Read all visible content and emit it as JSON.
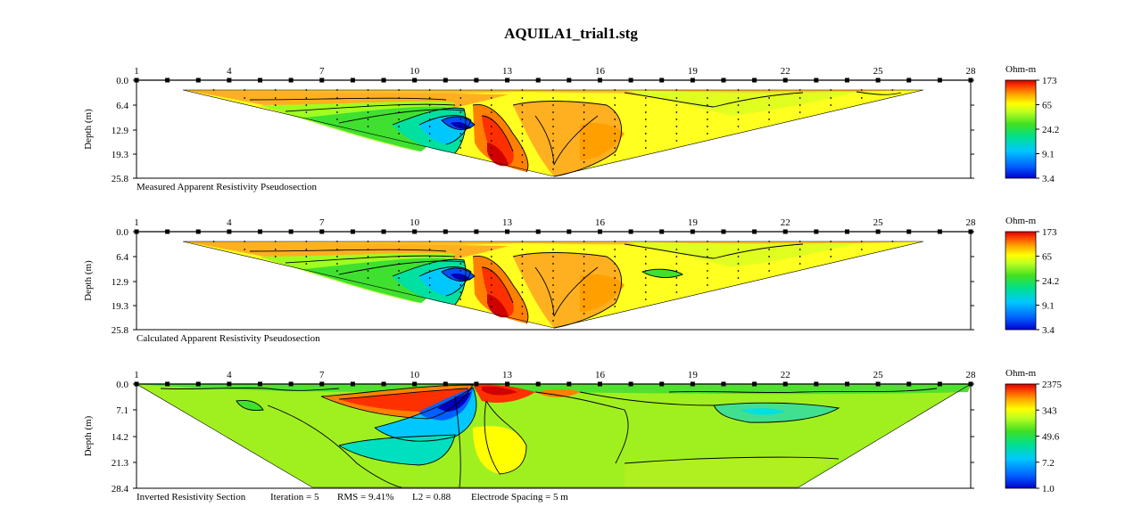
{
  "title": "AQUILA1_trial1.stg",
  "chart_data": [
    {
      "type": "heatmap",
      "caption": "Measured Apparent Resistivity Pseudosection",
      "electrode_labels": [
        "1",
        "4",
        "7",
        "10",
        "13",
        "16",
        "19",
        "22",
        "25",
        "28"
      ],
      "ylabel": "Depth (m)",
      "depth_ticks": [
        "0.0",
        "6.4",
        "12.9",
        "19.3",
        "25.8"
      ],
      "depth_max": 25.8,
      "colorbar_unit": "Ohm-m",
      "colorbar_ticks": [
        "173",
        "65",
        "24.2",
        "9.1",
        "3.4"
      ],
      "section_shape": "pseudosection-trapezoid"
    },
    {
      "type": "heatmap",
      "caption": "Calculated Apparent Resistivity Pseudosection",
      "electrode_labels": [
        "1",
        "4",
        "7",
        "10",
        "13",
        "16",
        "19",
        "22",
        "25",
        "28"
      ],
      "ylabel": "Depth (m)",
      "depth_ticks": [
        "0.0",
        "6.4",
        "12.9",
        "19.3",
        "25.8"
      ],
      "depth_max": 25.8,
      "colorbar_unit": "Ohm-m",
      "colorbar_ticks": [
        "173",
        "65",
        "24.2",
        "9.1",
        "3.4"
      ],
      "section_shape": "pseudosection-trapezoid"
    },
    {
      "type": "heatmap",
      "caption": "Inverted Resistivity Section",
      "iteration": "Iteration = 5",
      "rms": "RMS = 9.41%",
      "l2": "L2 = 0.88",
      "electrode_spacing": "Electrode Spacing = 5 m",
      "electrode_labels": [
        "1",
        "4",
        "7",
        "10",
        "13",
        "16",
        "19",
        "22",
        "25",
        "28"
      ],
      "ylabel": "Depth (m)",
      "depth_ticks": [
        "0.0",
        "7.1",
        "14.2",
        "21.3",
        "28.4"
      ],
      "depth_max": 28.4,
      "colorbar_unit": "Ohm-m",
      "colorbar_ticks": [
        "2375",
        "343",
        "49.6",
        "7.2",
        "1.0"
      ],
      "section_shape": "inverted-trapezoid"
    }
  ],
  "colors": {
    "scale": [
      "#0000d0",
      "#0080ff",
      "#00c8ff",
      "#00e0a0",
      "#20e020",
      "#a0ff20",
      "#ffff00",
      "#ffc000",
      "#ff8000",
      "#ff3000",
      "#d00000"
    ]
  }
}
